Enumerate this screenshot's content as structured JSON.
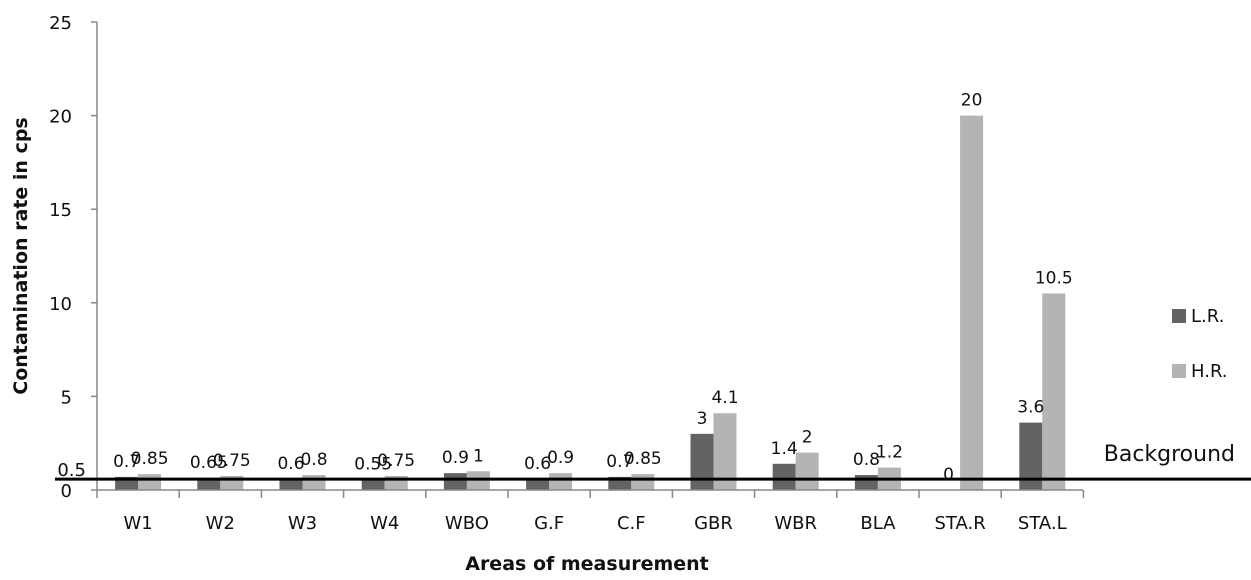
{
  "chart_data": {
    "type": "bar",
    "title": "",
    "xlabel": "Areas of measurement",
    "ylabel": "Contamination rate in cps",
    "ylim": [
      0,
      25
    ],
    "yticks": [
      0,
      5,
      10,
      15,
      20,
      25
    ],
    "grid": false,
    "legend_position": "right",
    "categories": [
      "W1",
      "W2",
      "W3",
      "W4",
      "WBO",
      "G.F",
      "C.F",
      "GBR",
      "WBR",
      "BLA",
      "STA.R",
      "STA.L"
    ],
    "series": [
      {
        "name": "L.R.",
        "color": "#636363",
        "values": [
          0.7,
          0.65,
          0.6,
          0.55,
          0.9,
          0.6,
          0.7,
          3,
          1.4,
          0.8,
          0,
          3.6
        ],
        "labels": [
          "0.7",
          "0.65",
          "0.6",
          "0.55",
          "0.9",
          "0.6",
          "0.7",
          "3",
          "1.4",
          "0.8",
          "0",
          "3.6"
        ]
      },
      {
        "name": "H.R.",
        "color": "#b4b4b4",
        "values": [
          0.85,
          0.75,
          0.8,
          0.75,
          1,
          0.9,
          0.85,
          4.1,
          2,
          1.2,
          20,
          10.5
        ],
        "labels": [
          "0.85",
          "0.75",
          "0.8",
          "0.75",
          "1",
          "0.9",
          "0.85",
          "4.1",
          "2",
          "1.2",
          "20",
          "10.5"
        ]
      }
    ],
    "reference_line": {
      "label": "Background",
      "value": 0.5,
      "value_label": "0.5",
      "color": "#000000"
    }
  }
}
